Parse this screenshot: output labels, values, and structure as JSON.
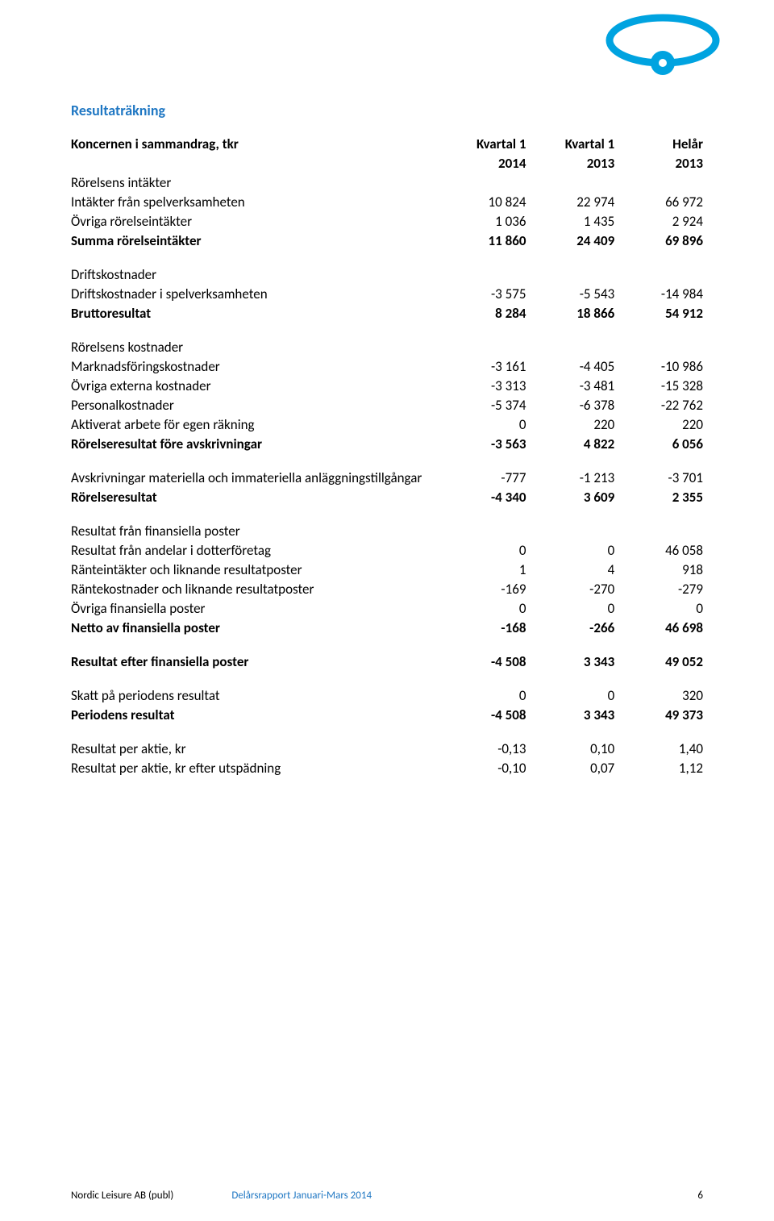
{
  "colors": {
    "accent": "#1f77c3",
    "logo_fill": "#00a3e0",
    "text": "#000000",
    "background": "#ffffff"
  },
  "typography": {
    "body_fontsize_pt": 12,
    "title_fontsize_pt": 13,
    "footer_fontsize_pt": 9,
    "font_family": "Calibri"
  },
  "section_title": "Resultaträkning",
  "header": {
    "label": "Koncernen i sammandrag, tkr",
    "cols": [
      {
        "line1": "Kvartal 1",
        "line2": "2014"
      },
      {
        "line1": "Kvartal 1",
        "line2": "2013"
      },
      {
        "line1": "Helår",
        "line2": "2013"
      }
    ]
  },
  "blocks": [
    {
      "heading": null,
      "rows": [
        {
          "label": "Rörelsens intäkter",
          "vals": [
            "",
            "",
            ""
          ],
          "bold": false
        },
        {
          "label": "Intäkter från spelverksamheten",
          "vals": [
            "10 824",
            "22 974",
            "66 972"
          ],
          "bold": false
        },
        {
          "label": "Övriga rörelseintäkter",
          "vals": [
            "1 036",
            "1 435",
            "2 924"
          ],
          "bold": false
        },
        {
          "label": "Summa rörelseintäkter",
          "vals": [
            "11 860",
            "24 409",
            "69 896"
          ],
          "bold": true
        }
      ]
    },
    {
      "rows": [
        {
          "label": "Driftskostnader",
          "vals": [
            "",
            "",
            ""
          ],
          "bold": false
        },
        {
          "label": "Driftskostnader i spelverksamheten",
          "vals": [
            "-3 575",
            "-5 543",
            "-14 984"
          ],
          "bold": false
        },
        {
          "label": "Bruttoresultat",
          "vals": [
            "8 284",
            "18 866",
            "54 912"
          ],
          "bold": true
        }
      ]
    },
    {
      "rows": [
        {
          "label": "Rörelsens kostnader",
          "vals": [
            "",
            "",
            ""
          ],
          "bold": false
        },
        {
          "label": "Marknadsföringskostnader",
          "vals": [
            "-3 161",
            "-4 405",
            "-10 986"
          ],
          "bold": false
        },
        {
          "label": "Övriga externa kostnader",
          "vals": [
            "-3 313",
            "-3 481",
            "-15 328"
          ],
          "bold": false
        },
        {
          "label": "Personalkostnader",
          "vals": [
            "-5 374",
            "-6 378",
            "-22 762"
          ],
          "bold": false
        },
        {
          "label": "Aktiverat arbete för egen räkning",
          "vals": [
            "0",
            "220",
            "220"
          ],
          "bold": false
        },
        {
          "label": "Rörelseresultat före avskrivningar",
          "vals": [
            "-3 563",
            "4 822",
            "6 056"
          ],
          "bold": true
        }
      ]
    },
    {
      "rows": [
        {
          "label": "Avskrivningar materiella och immateriella anläggningstillgångar",
          "vals": [
            "-777",
            "-1 213",
            "-3 701"
          ],
          "bold": false
        },
        {
          "label": "Rörelseresultat",
          "vals": [
            "-4 340",
            "3 609",
            "2 355"
          ],
          "bold": true
        }
      ]
    },
    {
      "rows": [
        {
          "label": "Resultat från finansiella poster",
          "vals": [
            "",
            "",
            ""
          ],
          "bold": false
        },
        {
          "label": "Resultat från andelar i dotterföretag",
          "vals": [
            "0",
            "0",
            "46 058"
          ],
          "bold": false
        },
        {
          "label": "Ränteintäkter och liknande resultatposter",
          "vals": [
            "1",
            "4",
            "918"
          ],
          "bold": false
        },
        {
          "label": "Räntekostnader och liknande resultatposter",
          "vals": [
            "-169",
            "-270",
            "-279"
          ],
          "bold": false
        },
        {
          "label": "Övriga finansiella poster",
          "vals": [
            "0",
            "0",
            "0"
          ],
          "bold": false
        },
        {
          "label": "Netto av finansiella poster",
          "vals": [
            "-168",
            "-266",
            "46 698"
          ],
          "bold": true
        }
      ]
    },
    {
      "rows": [
        {
          "label": "Resultat efter finansiella poster",
          "vals": [
            "-4 508",
            "3 343",
            "49 052"
          ],
          "bold": true
        }
      ]
    },
    {
      "rows": [
        {
          "label": "Skatt på periodens resultat",
          "vals": [
            "0",
            "0",
            "320"
          ],
          "bold": false
        },
        {
          "label": "Periodens resultat",
          "vals": [
            "-4 508",
            "3 343",
            "49 373"
          ],
          "bold": true
        }
      ]
    },
    {
      "rows": [
        {
          "label": "Resultat per aktie, kr",
          "vals": [
            "-0,13",
            "0,10",
            "1,40"
          ],
          "bold": false
        },
        {
          "label": "Resultat per aktie, kr efter utspädning",
          "vals": [
            "-0,10",
            "0,07",
            "1,12"
          ],
          "bold": false
        }
      ]
    }
  ],
  "footer": {
    "company": "Nordic Leisure AB (publ)",
    "report": "Delårsrapport Januari-Mars 2014",
    "page": "6"
  }
}
